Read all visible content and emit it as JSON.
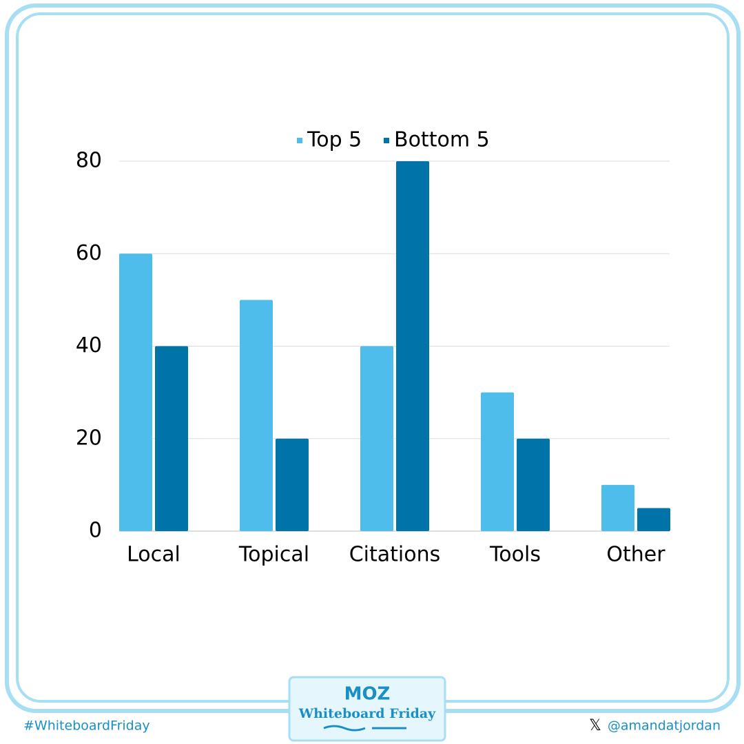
{
  "chart_data": {
    "type": "bar",
    "categories": [
      "Local",
      "Topical",
      "Citations",
      "Tools",
      "Other"
    ],
    "series": [
      {
        "name": "Top 5",
        "color": "#4fbdec",
        "values": [
          60,
          50,
          40,
          30,
          10
        ]
      },
      {
        "name": "Bottom 5",
        "color": "#0074a8",
        "values": [
          40,
          20,
          80,
          20,
          5
        ]
      }
    ],
    "ylim": [
      0,
      80
    ],
    "yticks": [
      0,
      20,
      40,
      60,
      80
    ],
    "grid": true,
    "legend": "top"
  },
  "footer": {
    "hashtag": "#WhiteboardFriday",
    "logo": "MOZ",
    "show": "Whiteboard Friday",
    "handle": "@amandatjordan"
  }
}
